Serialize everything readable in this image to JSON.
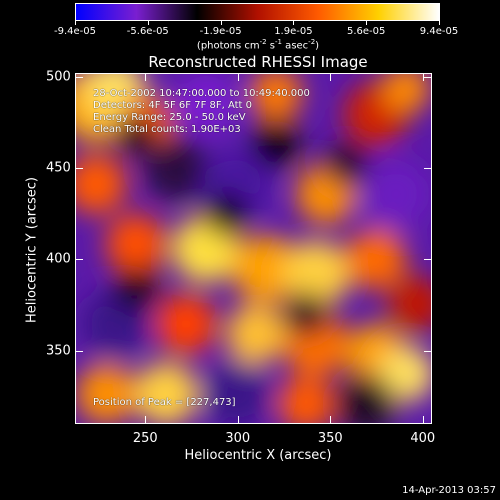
{
  "colorbar": {
    "tick_labels": [
      "-9.4e-05",
      "-5.6e-05",
      "-1.9e-05",
      "1.9e-05",
      "5.6e-05",
      "9.4e-05"
    ],
    "units": {
      "pre": "(photons cm",
      "exp1": "-2",
      "mid1": " s",
      "exp2": "-1",
      "mid2": " asec",
      "exp3": "-2",
      "post": ")"
    },
    "colors": [
      "#0000ff",
      "#7a1fd0",
      "#000000",
      "#b01000",
      "#ff5a00",
      "#ffd000",
      "#ffffff"
    ]
  },
  "plot": {
    "title": "Reconstructed RHESSI Image",
    "annotations": [
      "28-Oct-2002 10:47:00.000 to 10:49:40.000",
      "Detectors: 4F 5F 6F 7F 8F, Att 0",
      "Energy Range: 25.0 - 50.0 keV",
      "Clean     Total counts: 1.90E+03"
    ],
    "peak_label": "Position of Peak = [227,473]",
    "xlabel": "Heliocentric X (arcsec)",
    "ylabel": "Heliocentric Y (arcsec)",
    "x_ticks": [
      "250",
      "300",
      "350",
      "400"
    ],
    "y_ticks": [
      "350",
      "400",
      "450",
      "500"
    ],
    "xlim": [
      212,
      405
    ],
    "ylim": [
      310,
      502
    ]
  },
  "timestamp": "14-Apr-2013 03:57"
}
